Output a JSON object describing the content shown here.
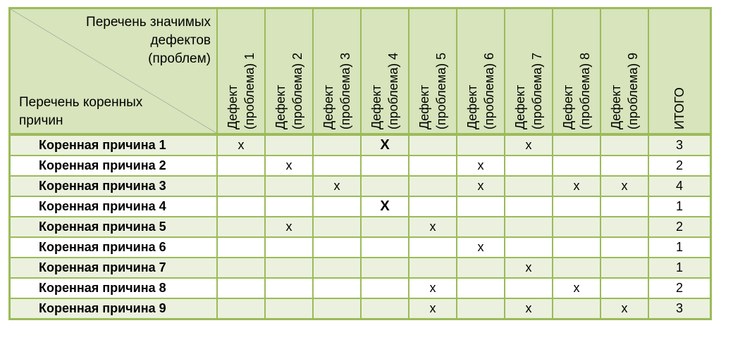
{
  "header": {
    "corner_top": [
      "Перечень значимых",
      "дефектов",
      "(проблем)"
    ],
    "corner_bottom": [
      "Перечень коренных",
      "причин"
    ],
    "columns": [
      {
        "line1": "Дефект",
        "line2": "(проблема) 1"
      },
      {
        "line1": "Дефект",
        "line2": "(проблема) 2"
      },
      {
        "line1": "Дефект",
        "line2": "(проблема) 3"
      },
      {
        "line1": "Дефект",
        "line2": "(проблема) 4"
      },
      {
        "line1": "Дефект",
        "line2": "(проблема) 5"
      },
      {
        "line1": "Дефект",
        "line2": "(проблема) 6"
      },
      {
        "line1": "Дефект",
        "line2": "(проблема) 7"
      },
      {
        "line1": "Дефект",
        "line2": "(проблема) 8"
      },
      {
        "line1": "Дефект",
        "line2": "(проблема) 9"
      }
    ],
    "total_label": "ИТОГО"
  },
  "rows": [
    {
      "label": "Коренная причина 1",
      "cells": [
        "x",
        "",
        "",
        "X",
        "",
        "",
        "x",
        "",
        ""
      ],
      "total": "3"
    },
    {
      "label": "Коренная причина 2",
      "cells": [
        "",
        "x",
        "",
        "",
        "",
        "x",
        "",
        "",
        ""
      ],
      "total": "2"
    },
    {
      "label": "Коренная причина 3",
      "cells": [
        "",
        "",
        "x",
        "",
        "",
        "x",
        "",
        "x",
        "x"
      ],
      "total": "4"
    },
    {
      "label": "Коренная причина 4",
      "cells": [
        "",
        "",
        "",
        "X",
        "",
        "",
        "",
        "",
        ""
      ],
      "total": "1"
    },
    {
      "label": "Коренная причина 5",
      "cells": [
        "",
        "x",
        "",
        "",
        "x",
        "",
        "",
        "",
        ""
      ],
      "total": "2"
    },
    {
      "label": "Коренная причина 6",
      "cells": [
        "",
        "",
        "",
        "",
        "",
        "x",
        "",
        "",
        ""
      ],
      "total": "1"
    },
    {
      "label": "Коренная причина 7",
      "cells": [
        "",
        "",
        "",
        "",
        "",
        "",
        "x",
        "",
        ""
      ],
      "total": "1"
    },
    {
      "label": "Коренная причина 8",
      "cells": [
        "",
        "",
        "",
        "",
        "x",
        "",
        "",
        "x",
        ""
      ],
      "total": "2"
    },
    {
      "label": "Коренная причина 9",
      "cells": [
        "",
        "",
        "",
        "",
        "x",
        "",
        "x",
        "",
        "x"
      ],
      "total": "3"
    }
  ],
  "colors": {
    "border": "#9bbb59",
    "header_fill": "#d7e4bc",
    "band_fill": "#ebf1de"
  }
}
